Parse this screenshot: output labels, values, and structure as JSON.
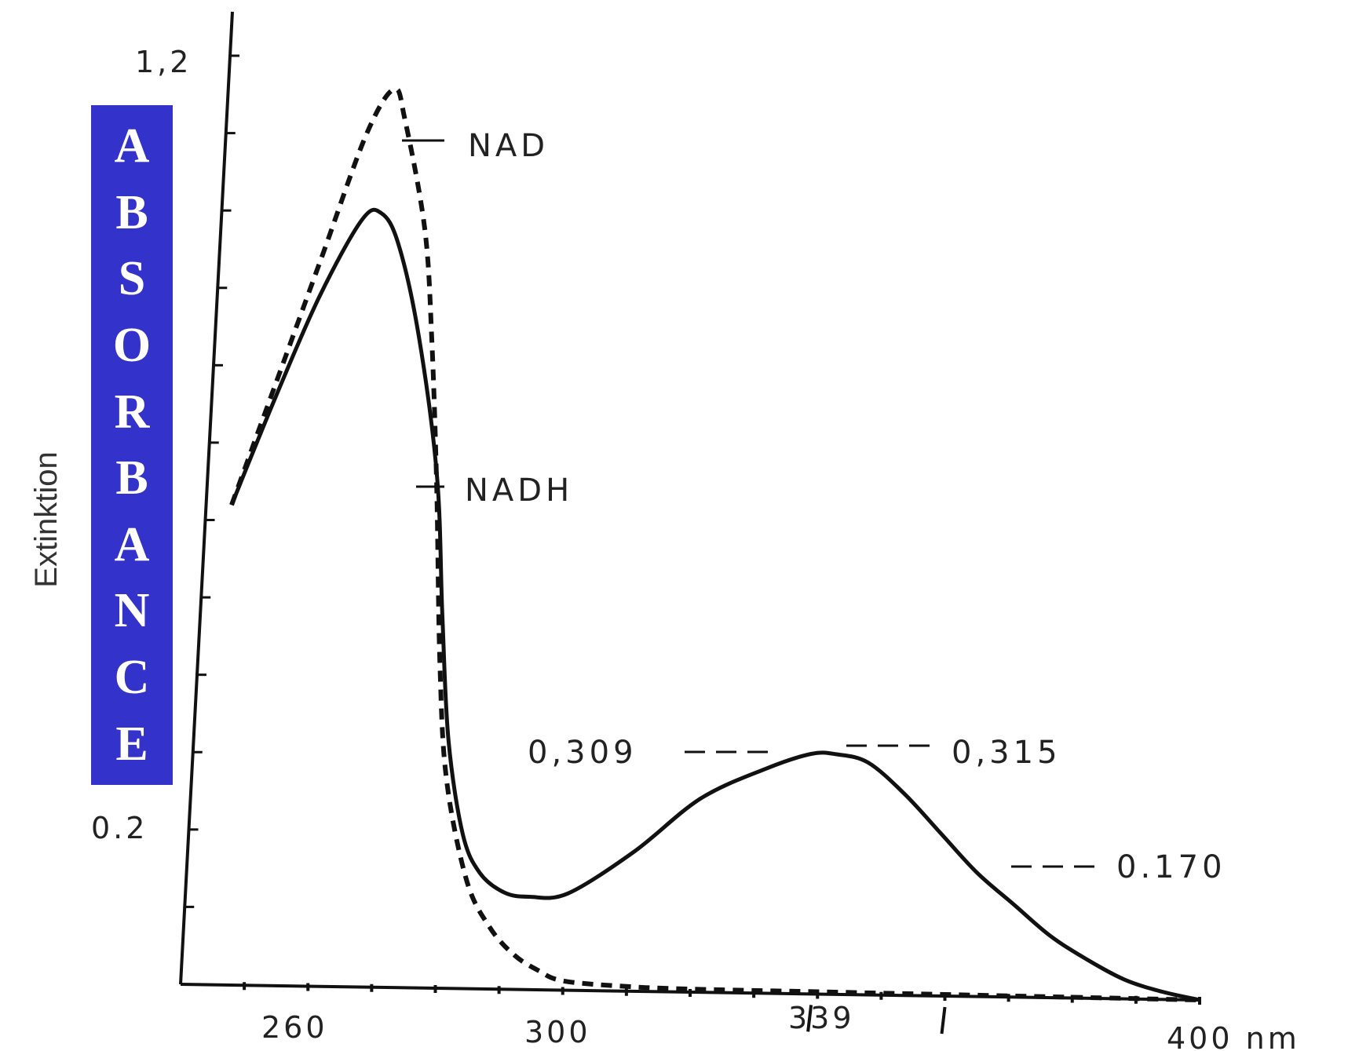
{
  "chart_data": {
    "type": "line",
    "xlabel": "nm",
    "ylabel": "Extinktion",
    "ylabel_overlay": "ABSORBANCE",
    "xlim": [
      240,
      400
    ],
    "ylim": [
      0,
      1.22
    ],
    "x_ticks": [
      {
        "value": 260,
        "label": "260"
      },
      {
        "value": 300,
        "label": "300"
      },
      {
        "value": 339,
        "label": "339"
      },
      {
        "value": 400,
        "label": "400 nm"
      }
    ],
    "y_ticks": [
      {
        "value": 1.2,
        "label": "1,2"
      },
      {
        "value": 0.2,
        "label": "0.2"
      }
    ],
    "series": [
      {
        "name": "NAD",
        "style": "dashed",
        "points": [
          [
            244,
            0.62
          ],
          [
            250,
            0.78
          ],
          [
            256,
            0.94
          ],
          [
            262,
            1.1
          ],
          [
            266,
            1.16
          ],
          [
            268,
            1.12
          ],
          [
            272,
            0.98
          ],
          [
            274,
            0.84
          ],
          [
            276,
            0.65
          ],
          [
            278,
            0.42
          ],
          [
            280,
            0.27
          ],
          [
            284,
            0.14
          ],
          [
            288,
            0.08
          ],
          [
            292,
            0.045
          ],
          [
            296,
            0.025
          ],
          [
            300,
            0.012
          ],
          [
            310,
            0.006
          ],
          [
            320,
            0.004
          ],
          [
            340,
            0.003
          ],
          [
            360,
            0.002
          ],
          [
            380,
            0.001
          ],
          [
            400,
            0.0
          ]
        ]
      },
      {
        "name": "NADH",
        "style": "solid",
        "points": [
          [
            244,
            0.62
          ],
          [
            250,
            0.76
          ],
          [
            256,
            0.89
          ],
          [
            262,
            0.99
          ],
          [
            265,
            1.0
          ],
          [
            268,
            0.96
          ],
          [
            272,
            0.84
          ],
          [
            276,
            0.66
          ],
          [
            278,
            0.48
          ],
          [
            280,
            0.32
          ],
          [
            283,
            0.2
          ],
          [
            286,
            0.15
          ],
          [
            290,
            0.125
          ],
          [
            294,
            0.12
          ],
          [
            300,
            0.125
          ],
          [
            310,
            0.18
          ],
          [
            320,
            0.25
          ],
          [
            330,
            0.29
          ],
          [
            337,
            0.31
          ],
          [
            341,
            0.31
          ],
          [
            346,
            0.3
          ],
          [
            352,
            0.26
          ],
          [
            358,
            0.21
          ],
          [
            364,
            0.16
          ],
          [
            370,
            0.12
          ],
          [
            376,
            0.08
          ],
          [
            382,
            0.05
          ],
          [
            388,
            0.025
          ],
          [
            394,
            0.01
          ],
          [
            400,
            0.0
          ]
        ]
      }
    ],
    "annotations": [
      {
        "text": "NAD",
        "x": 272,
        "y": 1.13
      },
      {
        "text": "NADH",
        "x": 277,
        "y": 0.66
      },
      {
        "text": "0,309",
        "x": 339,
        "y": 0.309,
        "side": "left"
      },
      {
        "text": "0,315",
        "x": 339,
        "y": 0.315,
        "side": "right"
      },
      {
        "text": "0.170",
        "x": 361,
        "y": 0.17,
        "side": "right"
      }
    ],
    "grid": false,
    "legend": "none"
  }
}
